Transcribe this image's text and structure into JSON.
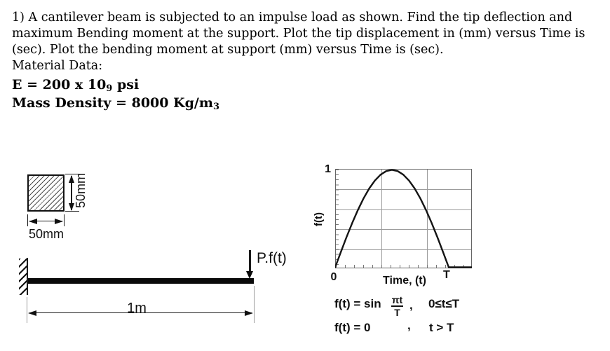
{
  "problem": {
    "lines": [
      "1) A cantilever beam is subjected to an impulse load as shown. Find the tip deflection and",
      "maximum Bending moment at the support. Plot the tip displacement in (mm) versus Time is",
      "(sec). Plot the bending moment at support (mm) versus Time is (sec).",
      "Material Data:"
    ],
    "modulus": {
      "prefix": "E = 200 x 10",
      "sub": "9",
      "suffix": " psi"
    },
    "density": {
      "prefix": "Mass Density = 8000 Kg/m",
      "sub": "3",
      "suffix": ""
    }
  },
  "cross_section": {
    "width_label": "50mm",
    "height_label": "50mm"
  },
  "beam": {
    "load_label": "P.f(t)",
    "length_label": "1m"
  },
  "chart": {
    "y_top_label": "1",
    "y_axis_label": "f(t)",
    "origin_label": "0",
    "x_axis_label": "Time, (t)",
    "x_end_label": "T",
    "equations": [
      {
        "lhs": "f(t) = sin",
        "frac_num": "πt",
        "frac_den": "T",
        "comma": ",",
        "condition": "0≤t≤T"
      },
      {
        "lhs": "f(t) = 0",
        "comma": ",",
        "condition": "t > T"
      }
    ]
  },
  "chart_data": {
    "type": "line",
    "title": "",
    "xlabel": "Time, (t)",
    "ylabel": "f(t)",
    "ylim": [
      0,
      1
    ],
    "x_tick_labels": [
      "0",
      "T"
    ],
    "y_tick_labels": [
      "1"
    ],
    "grid": true,
    "function": "f(t) = sin(πt/T) for 0≤t≤T ; f(t) = 0 for t>T",
    "x_over_T": [
      0,
      0.05,
      0.1,
      0.15,
      0.2,
      0.25,
      0.3,
      0.35,
      0.4,
      0.45,
      0.5,
      0.55,
      0.6,
      0.65,
      0.7,
      0.75,
      0.8,
      0.85,
      0.9,
      0.95,
      1.0
    ],
    "f": [
      0,
      0.156,
      0.309,
      0.454,
      0.588,
      0.707,
      0.809,
      0.891,
      0.951,
      0.988,
      1.0,
      0.988,
      0.951,
      0.891,
      0.809,
      0.707,
      0.588,
      0.454,
      0.309,
      0.156,
      0
    ],
    "tail_x_over_T": 1.2
  }
}
